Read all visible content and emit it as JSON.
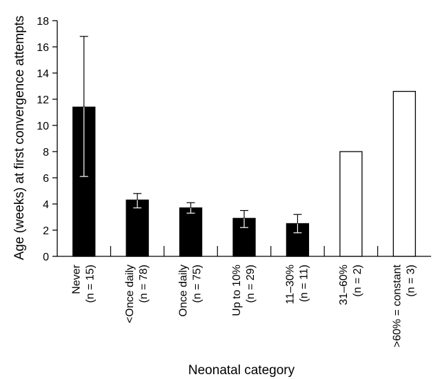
{
  "chart_data": {
    "type": "bar",
    "xlabel": "Neonatal category",
    "ylabel": "Age (weeks) at first convergence attempts",
    "ylim": [
      0,
      18
    ],
    "yticks": [
      "0",
      "2",
      "4",
      "6",
      "8",
      "10",
      "12",
      "14",
      "16",
      "18"
    ],
    "categories": [
      [
        "Never",
        "(n = 15)"
      ],
      [
        "<Once daily",
        "(n = 78)"
      ],
      [
        "Once daily",
        "(n = 75)"
      ],
      [
        "Up to 10%",
        "(n = 29)"
      ],
      [
        "11–30%",
        "(n = 11)"
      ],
      [
        "31–60%",
        "(n = 2)"
      ],
      [
        ">60% = constant",
        "(n = 3)"
      ]
    ],
    "values": [
      11.4,
      4.3,
      3.7,
      2.9,
      2.5,
      8.0,
      12.6
    ],
    "error_low": [
      6.1,
      3.7,
      3.3,
      2.2,
      1.8,
      null,
      null
    ],
    "error_high": [
      16.8,
      4.8,
      4.1,
      3.5,
      3.2,
      null,
      null
    ],
    "bar_fill": [
      "#000000",
      "#000000",
      "#000000",
      "#000000",
      "#000000",
      "#ffffff",
      "#ffffff"
    ],
    "grid": false
  }
}
